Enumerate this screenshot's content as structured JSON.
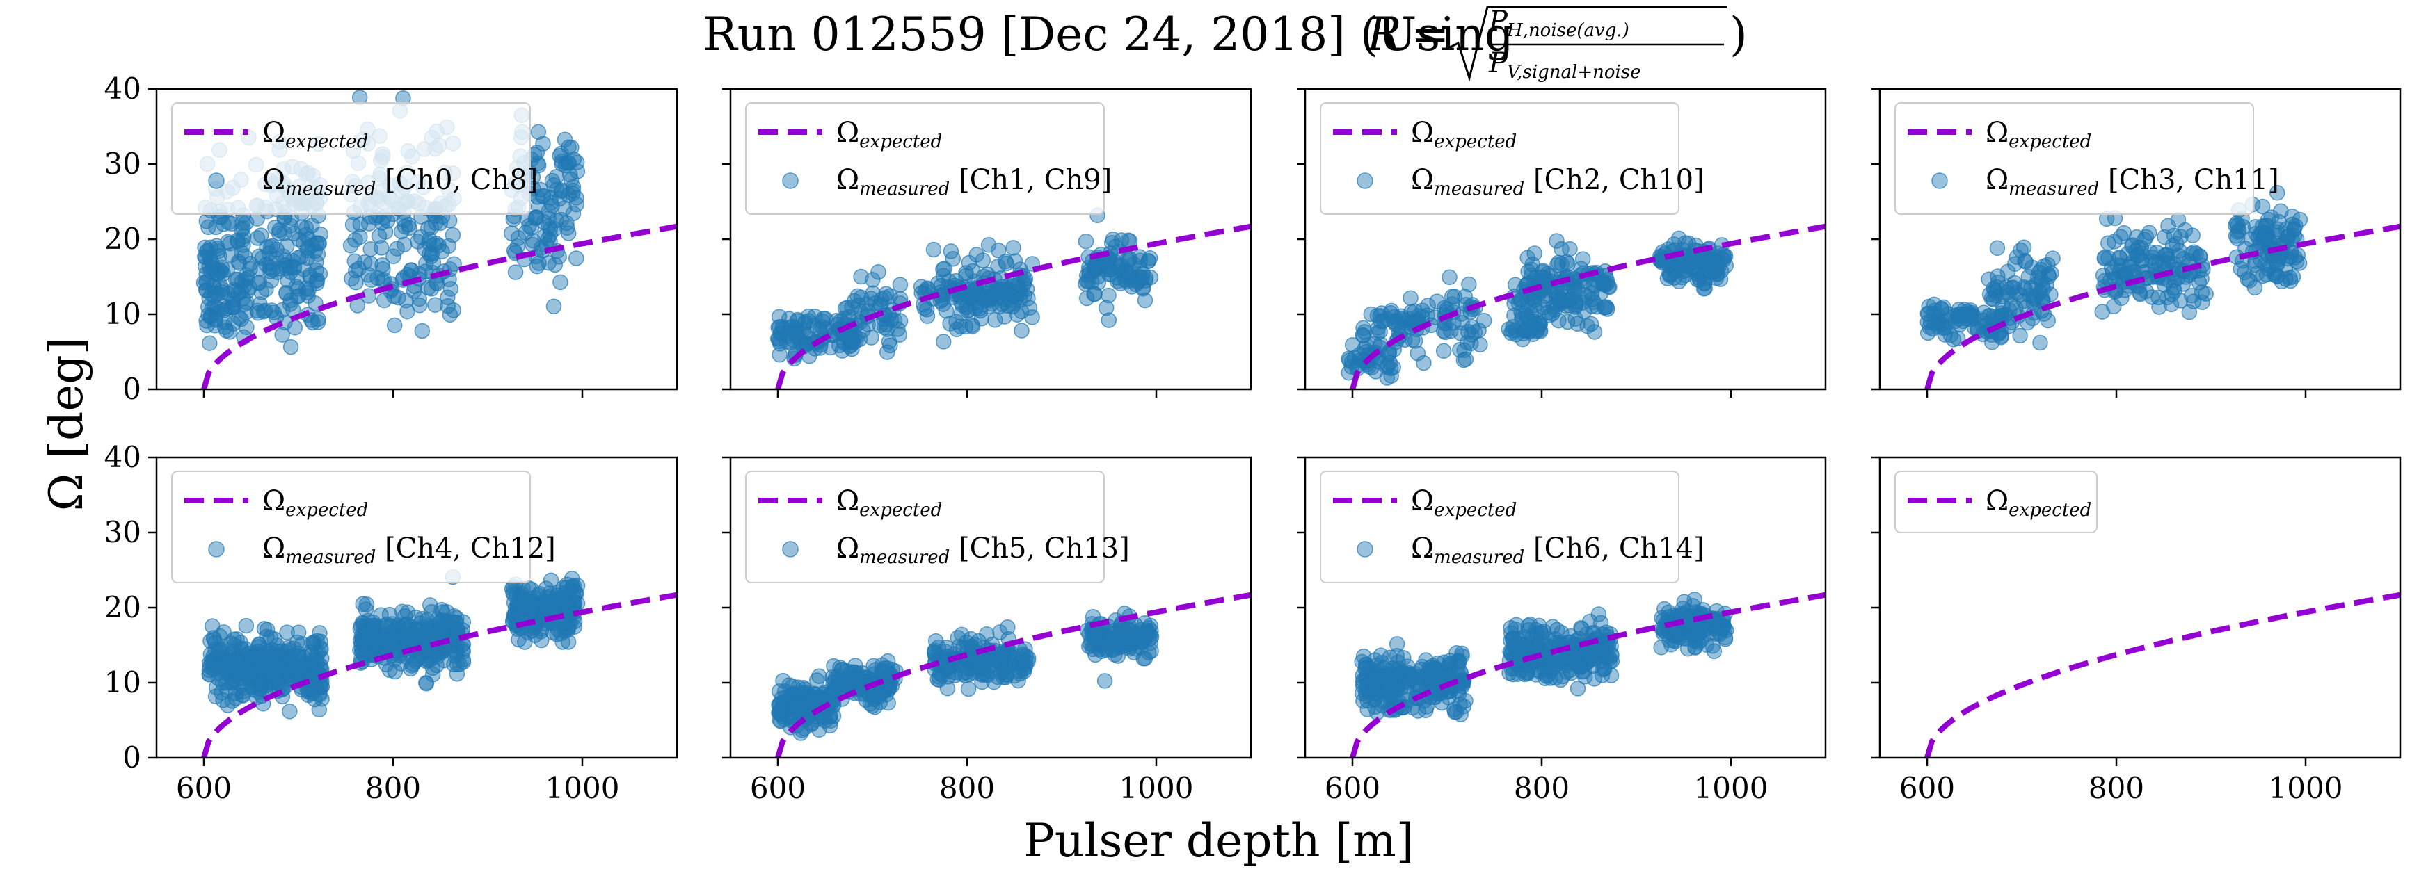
{
  "figure": {
    "title_text": "Run 012559 [Dec 24, 2018] (Using",
    "title_formula": {
      "lhs": "R",
      "eq": "=",
      "numerator": "P",
      "numerator_sub": "H,noise(avg.)",
      "denominator": "P",
      "denominator_sub": "V,signal+noise",
      "close": ")"
    },
    "xlabel": "Pulser depth [m]",
    "ylabel": "Ω [deg]"
  },
  "colors": {
    "expected": "#9400d3",
    "measured_fill": "#1f77b4",
    "measured_edge": "#1f77b4",
    "axis": "#000000",
    "legend_border": "#cccccc"
  },
  "chart_data": [
    {
      "type": "scatter",
      "legend": {
        "expected": "expected",
        "measured": "measured",
        "channels": "[Ch0, Ch8]"
      },
      "clusters": [
        [
          625,
          12,
          25,
          3,
          70
        ],
        [
          625,
          21,
          25,
          5,
          60
        ],
        [
          690,
          15,
          35,
          4,
          80
        ],
        [
          690,
          24,
          35,
          5,
          70
        ],
        [
          810,
          15,
          55,
          3,
          50
        ],
        [
          810,
          24,
          55,
          6,
          120
        ],
        [
          960,
          25,
          35,
          5,
          110
        ]
      ]
    },
    {
      "type": "scatter",
      "legend": {
        "expected": "expected",
        "measured": "measured",
        "channels": "[Ch1, Ch9]"
      },
      "clusters": [
        [
          640,
          7,
          40,
          1.3,
          90
        ],
        [
          700,
          10,
          30,
          2,
          60
        ],
        [
          810,
          12,
          60,
          2,
          110
        ],
        [
          820,
          15,
          50,
          2,
          40
        ],
        [
          960,
          16,
          35,
          2,
          90
        ]
      ]
    },
    {
      "type": "scatter",
      "legend": {
        "expected": "expected",
        "measured": "measured",
        "channels": "[Ch2, Ch10]"
      },
      "clusters": [
        [
          620,
          3.5,
          25,
          1,
          40
        ],
        [
          640,
          8,
          30,
          1.5,
          40
        ],
        [
          700,
          9,
          40,
          2.5,
          60
        ],
        [
          780,
          8.5,
          20,
          1,
          30
        ],
        [
          820,
          12,
          50,
          1.8,
          90
        ],
        [
          830,
          15,
          45,
          1.5,
          60
        ],
        [
          960,
          17,
          35,
          1.5,
          110
        ]
      ]
    },
    {
      "type": "scatter",
      "legend": {
        "expected": "expected",
        "measured": "measured",
        "channels": "[Ch3, Ch11]"
      },
      "clusters": [
        [
          640,
          9,
          40,
          1.2,
          80
        ],
        [
          700,
          13,
          35,
          2.5,
          80
        ],
        [
          840,
          16,
          55,
          2.5,
          140
        ],
        [
          960,
          19,
          35,
          2.5,
          110
        ]
      ]
    },
    {
      "type": "scatter",
      "legend": {
        "expected": "expected",
        "measured": "measured",
        "channels": "[Ch4, Ch12]"
      },
      "clusters": [
        [
          665,
          12,
          60,
          2,
          320
        ],
        [
          820,
          15.5,
          55,
          2,
          280
        ],
        [
          960,
          19.5,
          35,
          1.8,
          180
        ]
      ]
    },
    {
      "type": "scatter",
      "legend": {
        "expected": "expected",
        "measured": "measured",
        "channels": "[Ch5, Ch13]"
      },
      "clusters": [
        [
          630,
          7,
          30,
          1.5,
          150
        ],
        [
          690,
          10,
          35,
          1.2,
          120
        ],
        [
          815,
          13,
          50,
          1.5,
          160
        ],
        [
          960,
          16,
          35,
          1.2,
          120
        ]
      ]
    },
    {
      "type": "scatter",
      "legend": {
        "expected": "expected",
        "measured": "measured",
        "channels": "[Ch6, Ch14]"
      },
      "clusters": [
        [
          665,
          10,
          55,
          1.8,
          250
        ],
        [
          820,
          14,
          55,
          1.8,
          230
        ],
        [
          960,
          17.5,
          35,
          1.3,
          140
        ]
      ]
    },
    {
      "type": "line",
      "legend": {
        "expected": "expected"
      },
      "clusters": []
    }
  ],
  "axes": {
    "xlim": [
      550,
      1100
    ],
    "ylim": [
      0,
      40
    ],
    "xticks": [
      600,
      800,
      1000
    ],
    "yticks": [
      0,
      10,
      20,
      30,
      40
    ],
    "expected_curve": {
      "form": "0.97*sqrt(x-600)",
      "xrange": [
        600,
        1100
      ]
    }
  }
}
